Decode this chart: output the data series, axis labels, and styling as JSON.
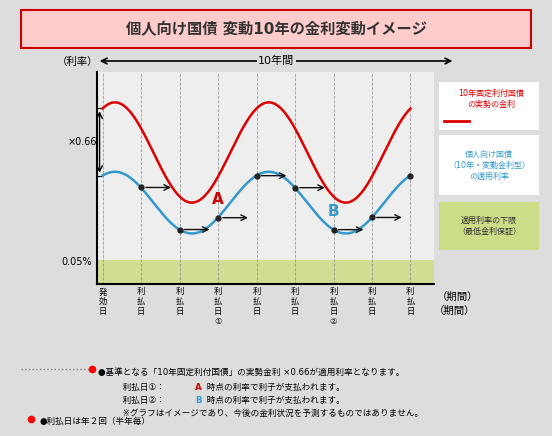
{
  "title": "個人向け国債 変動10年の金利変動イメージ",
  "title_bg": "#FFCCCC",
  "title_border": "#CC0000",
  "bg_color": "#DDDDDD",
  "floor_label": "適用利率の下限\n（最低金利保証）",
  "x066_label": "×0.66",
  "ylabel": "（利率）",
  "xlabel": "（期間）",
  "period_label": "10年間",
  "red_curve_label": "10年固定利付国債\nの実勢の金利",
  "blue_curve_label": "個人向け国債\n（10年・変動金利型）\nの適用利率",
  "note1": "●基準となる「10年固定利付国債」の実勢金利 ×0.66が適用利率となります。",
  "note2": "　利払日①：",
  "note2a": "A",
  "note2b": " 時点の利率で利子が支払われます。",
  "note3": "　利払日②：",
  "note3a": "B",
  "note3b": " 時点の利率で利子が支払われます。",
  "note4": "　※グラフはイメージであり、今後の金利状況を予測するものではありません。",
  "note5": "●利払日は年２回（半年毎）",
  "red_color": "#DD0000",
  "blue_color": "#3399CC",
  "green_fill": "#CCDD88",
  "green_border": "#88AA44",
  "A_label_color": "#CC0000",
  "B_label_color": "#3399CC",
  "chart_facecolor": "#EEEEEE"
}
